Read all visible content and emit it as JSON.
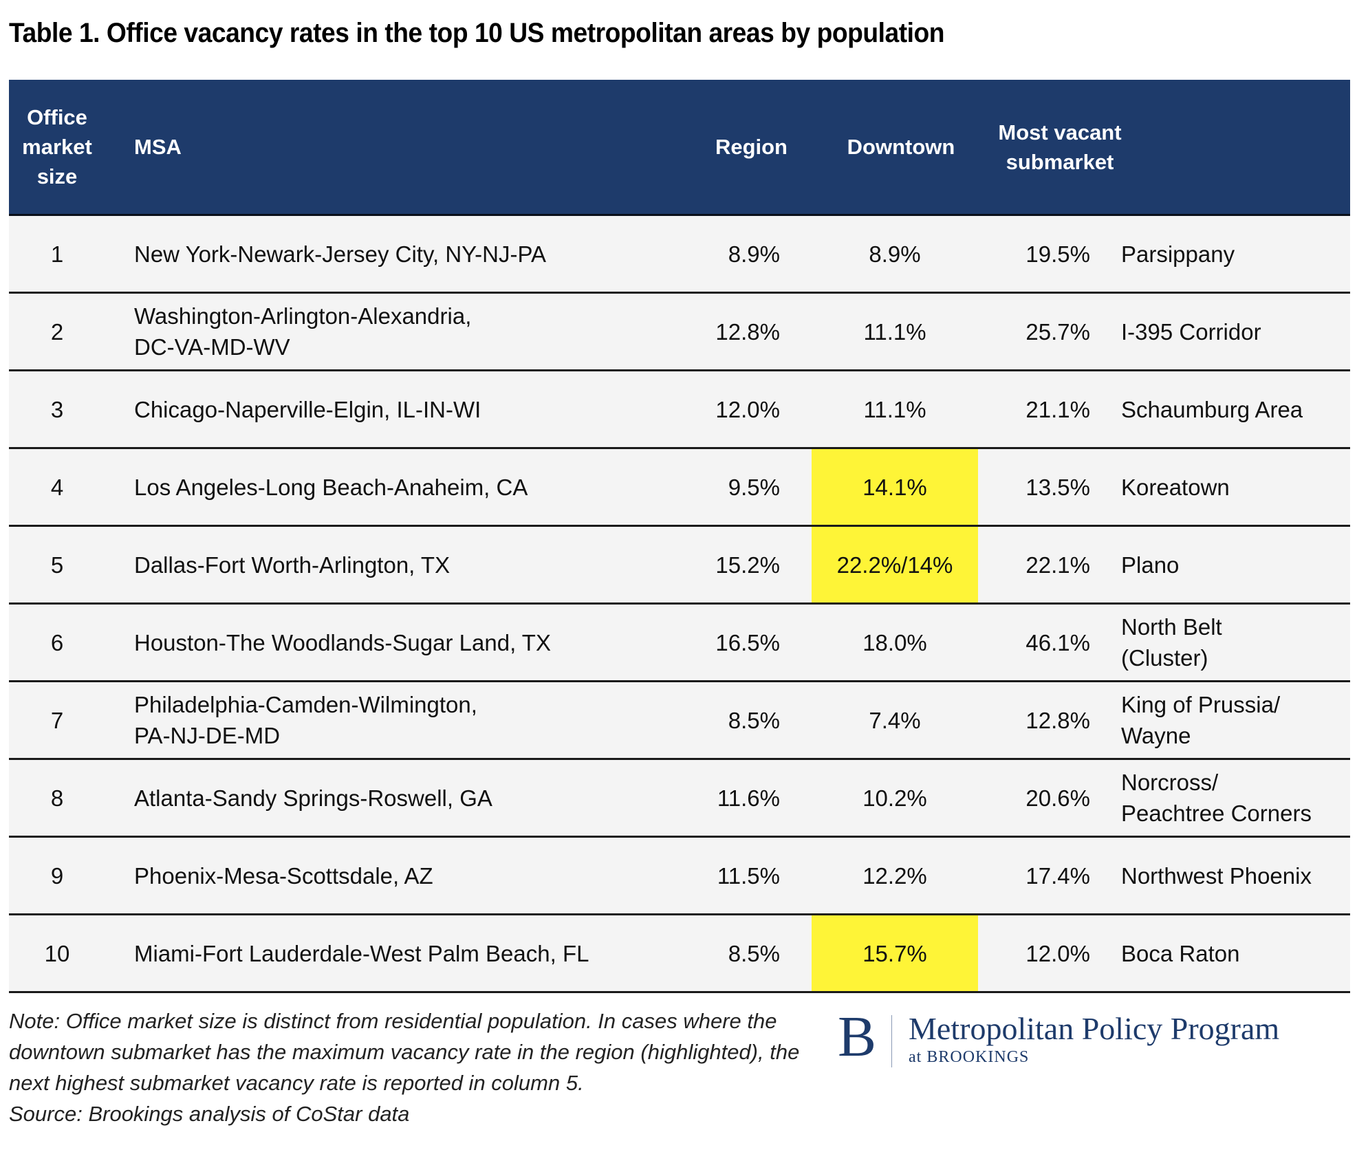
{
  "title": "Table 1. Office vacancy rates in the top 10 US metropolitan areas by population",
  "colors": {
    "header_bg": "#1e3b6b",
    "row_bg": "#f4f4f4",
    "highlight": "#fef437",
    "brand": "#1e3b6b"
  },
  "table": {
    "headers": {
      "size": "Office\nmarket\nsize",
      "msa": "MSA",
      "region": "Region",
      "downtown": "Downtown",
      "most_vacant": "Most vacant\nsubmarket"
    },
    "rows": [
      {
        "size": "1",
        "msa": "New York-Newark-Jersey City, NY-NJ-PA",
        "region": "8.9%",
        "downtown": "8.9%",
        "downtown_highlighted": false,
        "most_vacant_rate": "19.5%",
        "submarket": "Parsippany"
      },
      {
        "size": "2",
        "msa": "Washington-Arlington-Alexandria,\nDC-VA-MD-WV",
        "region": "12.8%",
        "downtown": "11.1%",
        "downtown_highlighted": false,
        "most_vacant_rate": "25.7%",
        "submarket": "I-395 Corridor"
      },
      {
        "size": "3",
        "msa": "Chicago-Naperville-Elgin, IL-IN-WI",
        "region": "12.0%",
        "downtown": "11.1%",
        "downtown_highlighted": false,
        "most_vacant_rate": "21.1%",
        "submarket": "Schaumburg Area"
      },
      {
        "size": "4",
        "msa": "Los Angeles-Long Beach-Anaheim, CA",
        "region": "9.5%",
        "downtown": "14.1%",
        "downtown_highlighted": true,
        "most_vacant_rate": "13.5%",
        "submarket": "Koreatown"
      },
      {
        "size": "5",
        "msa": "Dallas-Fort Worth-Arlington, TX",
        "region": "15.2%",
        "downtown": "22.2%/14%",
        "downtown_highlighted": true,
        "most_vacant_rate": "22.1%",
        "submarket": "Plano"
      },
      {
        "size": "6",
        "msa": "Houston-The Woodlands-Sugar Land, TX",
        "region": "16.5%",
        "downtown": "18.0%",
        "downtown_highlighted": false,
        "most_vacant_rate": "46.1%",
        "submarket": "North Belt\n(Cluster)"
      },
      {
        "size": "7",
        "msa": "Philadelphia-Camden-Wilmington,\nPA-NJ-DE-MD",
        "region": "8.5%",
        "downtown": "7.4%",
        "downtown_highlighted": false,
        "most_vacant_rate": "12.8%",
        "submarket": "King of Prussia/\nWayne"
      },
      {
        "size": "8",
        "msa": "Atlanta-Sandy Springs-Roswell, GA",
        "region": "11.6%",
        "downtown": "10.2%",
        "downtown_highlighted": false,
        "most_vacant_rate": "20.6%",
        "submarket": "Norcross/\nPeachtree Corners"
      },
      {
        "size": "9",
        "msa": "Phoenix-Mesa-Scottsdale, AZ",
        "region": "11.5%",
        "downtown": "12.2%",
        "downtown_highlighted": false,
        "most_vacant_rate": "17.4%",
        "submarket": "Northwest Phoenix"
      },
      {
        "size": "10",
        "msa": "Miami-Fort Lauderdale-West Palm Beach, FL",
        "region": "8.5%",
        "downtown": "15.7%",
        "downtown_highlighted": true,
        "most_vacant_rate": "12.0%",
        "submarket": "Boca Raton"
      }
    ]
  },
  "footer": {
    "note": "Note: Office market size is distinct from residential population. In cases where the downtown submarket has the maximum vacancy rate in the region (highlighted), the next highest submarket vacancy rate is reported in column 5.",
    "source": "Source: Brookings analysis of CoStar data"
  },
  "logo": {
    "icon": "brookings-b-logo",
    "letter": "B",
    "name": "Metropolitan Policy Program",
    "sub": "at BROOKINGS"
  }
}
